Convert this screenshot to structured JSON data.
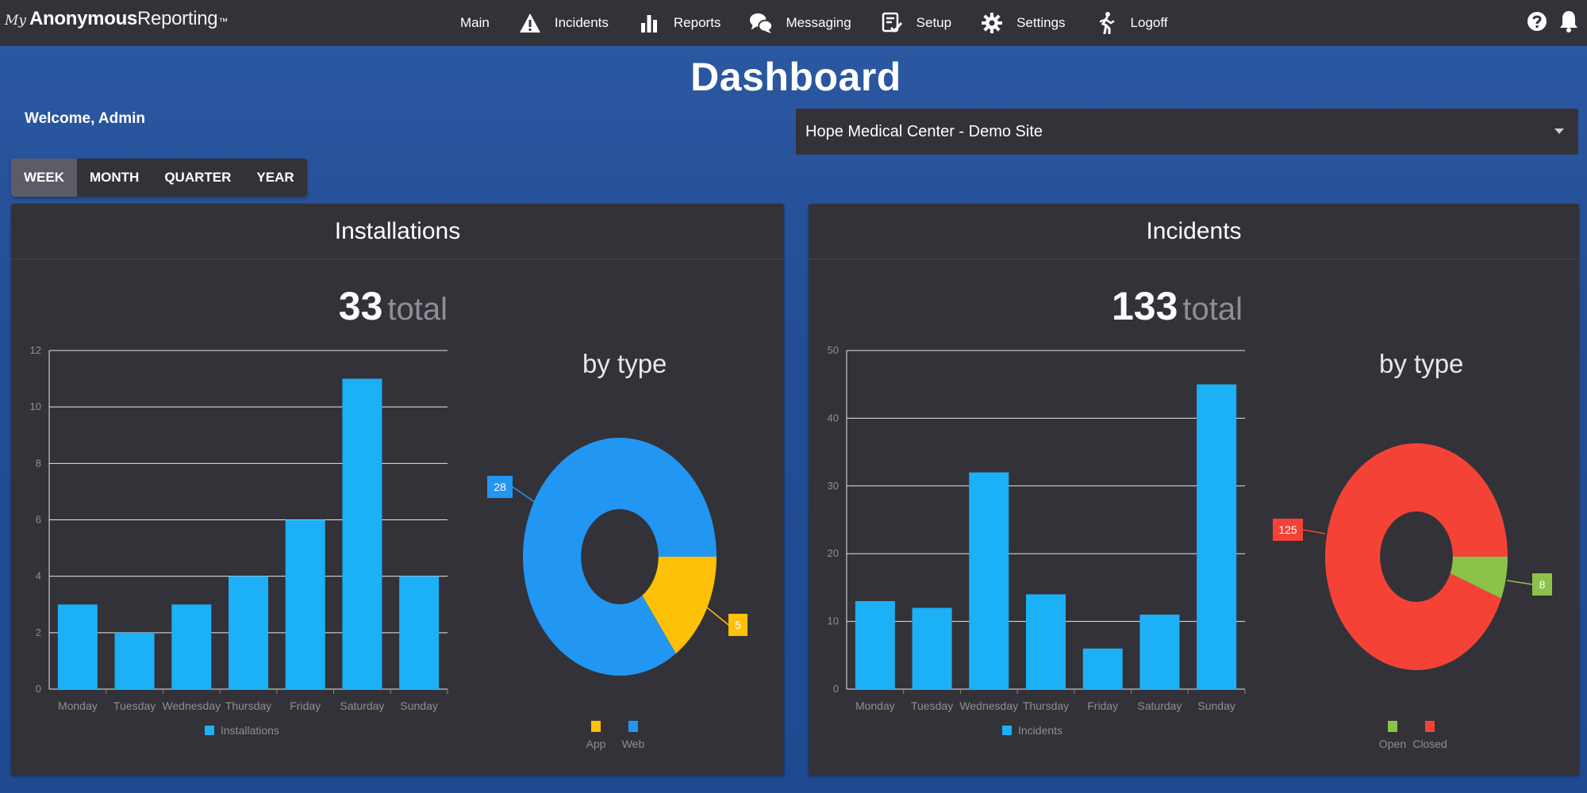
{
  "brand": {
    "my": "My",
    "anonymous": "Anonymous",
    "reporting": "Reporting",
    "tm": "™"
  },
  "nav": [
    {
      "label": "Main",
      "icon": ""
    },
    {
      "label": "Incidents",
      "icon": "warning-icon"
    },
    {
      "label": "Reports",
      "icon": "bar-chart-icon"
    },
    {
      "label": "Messaging",
      "icon": "chat-bubbles-icon"
    },
    {
      "label": "Setup",
      "icon": "checklist-icon"
    },
    {
      "label": "Settings",
      "icon": "gear-icon"
    },
    {
      "label": "Logoff",
      "icon": "running-person-icon"
    }
  ],
  "top_right_icons": [
    "help-icon",
    "bell-icon"
  ],
  "page": {
    "title": "Dashboard",
    "welcome": "Welcome, Admin"
  },
  "site_select": {
    "value": "Hope Medical Center - Demo Site"
  },
  "periods": {
    "items": [
      "WEEK",
      "MONTH",
      "QUARTER",
      "YEAR"
    ],
    "active": "WEEK"
  },
  "colors": {
    "bar": "#1cb0f6",
    "web": "#2196f3",
    "app": "#ffc107",
    "closed": "#f44336",
    "open": "#8bc34a",
    "panel": "#333238"
  },
  "installations": {
    "title": "Installations",
    "total": "33",
    "total_word": "total",
    "by_type_label": "by type"
  },
  "incidents": {
    "title": "Incidents",
    "total": "133",
    "total_word": "total",
    "by_type_label": "by type"
  },
  "chart_data": [
    {
      "type": "bar",
      "categories": [
        "Monday",
        "Tuesday",
        "Wednesday",
        "Thursday",
        "Friday",
        "Saturday",
        "Sunday"
      ],
      "series": [
        {
          "name": "Installations",
          "values": [
            3,
            2,
            3,
            4,
            6,
            11,
            4
          ]
        }
      ],
      "ylim": [
        0,
        12
      ],
      "yticks": [
        0,
        2,
        4,
        6,
        8,
        10,
        12
      ],
      "grid": true,
      "legend": "bottom"
    },
    {
      "type": "pie",
      "title": "by type",
      "labels": [
        "App",
        "Web"
      ],
      "values": [
        5,
        28
      ],
      "colors": [
        "#ffc107",
        "#2196f3"
      ],
      "legend": "bottom"
    },
    {
      "type": "bar",
      "categories": [
        "Monday",
        "Tuesday",
        "Wednesday",
        "Thursday",
        "Friday",
        "Saturday",
        "Sunday"
      ],
      "series": [
        {
          "name": "Incidents",
          "values": [
            13,
            12,
            32,
            14,
            6,
            11,
            45
          ]
        }
      ],
      "ylim": [
        0,
        50
      ],
      "yticks": [
        0,
        10,
        20,
        30,
        40,
        50
      ],
      "grid": true,
      "legend": "bottom"
    },
    {
      "type": "pie",
      "title": "by type",
      "labels": [
        "Open",
        "Closed"
      ],
      "values": [
        8,
        125
      ],
      "colors": [
        "#8bc34a",
        "#f44336"
      ],
      "legend": "bottom"
    }
  ]
}
